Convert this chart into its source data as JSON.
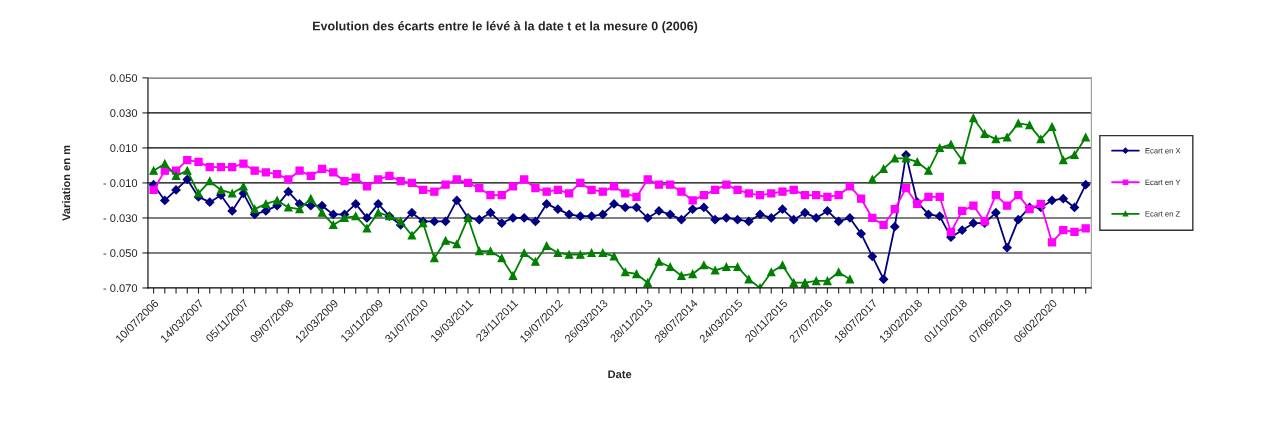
{
  "chart_data": {
    "type": "line",
    "title": "Evolution des écarts entre le lévé à la date t et la mesure 0 (2006)",
    "xlabel": "Date",
    "ylabel": "Variation en m",
    "categories": [
      "10/07/2006",
      null,
      null,
      null,
      "14/03/2007",
      null,
      null,
      null,
      "05/11/2007",
      null,
      null,
      null,
      "09/07/2008",
      null,
      null,
      null,
      "12/03/2009",
      null,
      null,
      null,
      "13/11/2009",
      null,
      null,
      null,
      "31/07/2010",
      null,
      null,
      null,
      "19/03/2011",
      null,
      null,
      null,
      "23/11/2011",
      null,
      null,
      null,
      "19/07/2012",
      null,
      null,
      null,
      "26/03/2013",
      null,
      null,
      null,
      "28/11/2013",
      null,
      null,
      null,
      "28/07/2014",
      null,
      null,
      null,
      "24/03/2015",
      null,
      null,
      null,
      "20/11/2015",
      null,
      null,
      null,
      "27/07/2016",
      null,
      null,
      null,
      "18/07/2017",
      null,
      null,
      null,
      "13/02/2018",
      null,
      null,
      null,
      "01/10/2018",
      null,
      null,
      null,
      "07/06/2019",
      null,
      null,
      null,
      "06/02/2020",
      null,
      null,
      null
    ],
    "series": [
      {
        "name": "Ecart en X",
        "color": "#000080",
        "marker": "diamond",
        "values": [
          -0.011,
          -0.02,
          -0.014,
          -0.008,
          -0.018,
          -0.021,
          -0.017,
          -0.026,
          -0.016,
          -0.028,
          -0.026,
          -0.023,
          -0.015,
          -0.022,
          -0.023,
          -0.023,
          -0.028,
          -0.028,
          -0.022,
          -0.03,
          -0.022,
          -0.029,
          -0.034,
          -0.027,
          -0.032,
          -0.032,
          -0.032,
          -0.02,
          -0.03,
          -0.031,
          -0.027,
          -0.033,
          -0.03,
          -0.03,
          -0.032,
          -0.022,
          -0.025,
          -0.028,
          -0.029,
          -0.029,
          -0.028,
          -0.022,
          -0.024,
          -0.024,
          -0.03,
          -0.026,
          -0.028,
          -0.031,
          -0.025,
          -0.024,
          -0.031,
          -0.03,
          -0.031,
          -0.032,
          -0.028,
          -0.03,
          -0.025,
          -0.031,
          -0.027,
          -0.03,
          -0.026,
          -0.032,
          -0.03,
          -0.039,
          -0.052,
          -0.065,
          -0.035,
          0.006,
          -0.021,
          -0.028,
          -0.029,
          -0.041,
          -0.037,
          -0.033,
          -0.033,
          -0.027,
          -0.047,
          -0.031,
          -0.024,
          -0.024,
          -0.02,
          -0.019,
          -0.024,
          -0.011
        ]
      },
      {
        "name": "Ecart en Y",
        "color": "#ff00ff",
        "marker": "square",
        "values": [
          -0.014,
          -0.003,
          -0.003,
          0.003,
          0.002,
          -0.001,
          -0.001,
          -0.001,
          0.001,
          -0.003,
          -0.004,
          -0.005,
          -0.008,
          -0.003,
          -0.006,
          -0.002,
          -0.004,
          -0.009,
          -0.007,
          -0.012,
          -0.008,
          -0.006,
          -0.009,
          -0.01,
          -0.014,
          -0.015,
          -0.011,
          -0.008,
          -0.01,
          -0.013,
          -0.017,
          -0.017,
          -0.012,
          -0.008,
          -0.013,
          -0.015,
          -0.014,
          -0.016,
          -0.01,
          -0.014,
          -0.015,
          -0.012,
          -0.016,
          -0.018,
          -0.008,
          -0.011,
          -0.011,
          -0.015,
          -0.02,
          -0.017,
          -0.014,
          -0.011,
          -0.014,
          -0.016,
          -0.017,
          -0.016,
          -0.015,
          -0.014,
          -0.017,
          -0.017,
          -0.018,
          -0.017,
          -0.012,
          -0.019,
          -0.03,
          -0.034,
          -0.025,
          -0.013,
          -0.022,
          -0.018,
          -0.018,
          -0.038,
          -0.026,
          -0.023,
          -0.032,
          -0.017,
          -0.023,
          -0.017,
          -0.025,
          -0.022,
          -0.044,
          -0.037,
          -0.038,
          -0.036
        ]
      },
      {
        "name": "Ecart en Z",
        "color": "#008000",
        "marker": "triangle",
        "values": [
          -0.003,
          0.001,
          -0.006,
          -0.003,
          -0.016,
          -0.009,
          -0.014,
          -0.016,
          -0.012,
          -0.025,
          -0.022,
          -0.02,
          -0.024,
          -0.025,
          -0.019,
          -0.027,
          -0.034,
          -0.03,
          -0.029,
          -0.036,
          -0.027,
          -0.029,
          -0.032,
          -0.04,
          -0.033,
          -0.053,
          -0.043,
          -0.045,
          -0.03,
          -0.049,
          -0.049,
          -0.053,
          -0.063,
          -0.05,
          -0.055,
          -0.046,
          -0.05,
          -0.051,
          -0.051,
          -0.05,
          -0.05,
          -0.052,
          -0.061,
          -0.062,
          -0.067,
          -0.055,
          -0.058,
          -0.063,
          -0.062,
          -0.057,
          -0.06,
          -0.058,
          -0.058,
          -0.065,
          -0.07,
          -0.061,
          -0.057,
          -0.067,
          -0.067,
          -0.066,
          -0.066,
          -0.061,
          -0.065,
          null,
          -0.008,
          -0.002,
          0.004,
          0.004,
          0.002,
          -0.003,
          0.01,
          0.012,
          0.003,
          0.027,
          0.018,
          0.015,
          0.016,
          0.024,
          0.023,
          0.015,
          0.022,
          0.003,
          0.006,
          0.016
        ]
      }
    ],
    "ylim": [
      -0.07,
      0.05
    ],
    "yticks": [
      {
        "value": 0.05,
        "label": "0.050"
      },
      {
        "value": 0.03,
        "label": "0.030"
      },
      {
        "value": 0.01,
        "label": "0.010"
      },
      {
        "value": -0.01,
        "label": "- 0.010"
      },
      {
        "value": -0.03,
        "label": "- 0.030"
      },
      {
        "value": -0.05,
        "label": "- 0.050"
      },
      {
        "value": -0.07,
        "label": "- 0.070"
      }
    ],
    "grid": "y",
    "legend": "right",
    "line_style": "solid"
  }
}
